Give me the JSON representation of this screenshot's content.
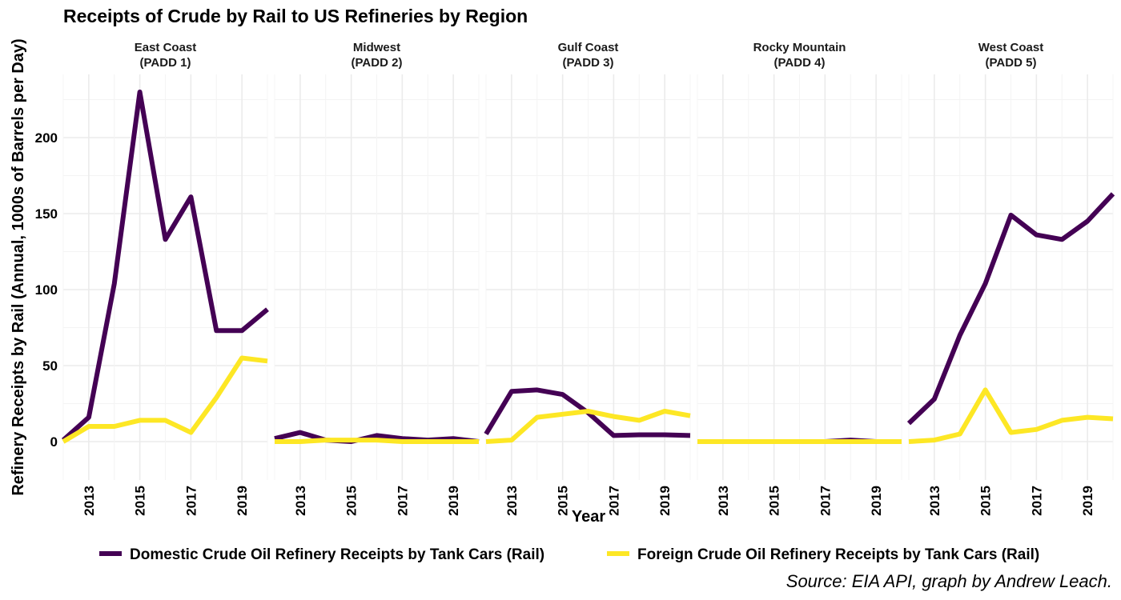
{
  "chart_data": {
    "type": "line",
    "title": "Receipts of Crude by Rail to US Refineries by Region",
    "xlabel": "Year",
    "ylabel": "Refinery Receipts by Rail (Annual, 1000s of Barrels per Day)",
    "caption": "Source: EIA API, graph by Andrew Leach.",
    "xlim": [
      2012,
      2020
    ],
    "ylim": [
      0,
      230
    ],
    "x_ticks": [
      2013,
      2015,
      2017,
      2019
    ],
    "y_ticks": [
      0,
      50,
      100,
      150,
      200
    ],
    "x": [
      2012,
      2013,
      2014,
      2015,
      2016,
      2017,
      2018,
      2019,
      2020
    ],
    "legend_position": "bottom",
    "colors": {
      "domestic": "#440154",
      "foreign": "#fde725"
    },
    "series_names": [
      "Domestic Crude Oil Refinery Receipts by Tank Cars (Rail)",
      "Foreign Crude Oil Refinery Receipts by Tank Cars (Rail)"
    ],
    "panels": [
      {
        "region": "East Coast",
        "padd": "(PADD 1)",
        "domestic": [
          1,
          16,
          104,
          230,
          133,
          161,
          73,
          73,
          87
        ],
        "foreign": [
          0,
          10,
          10,
          14,
          14,
          6,
          29,
          55,
          53
        ]
      },
      {
        "region": "Midwest",
        "padd": "(PADD 2)",
        "domestic": [
          2,
          6,
          1,
          0,
          4,
          2,
          1,
          2,
          0
        ],
        "foreign": [
          0,
          0,
          1,
          1,
          1,
          0,
          0,
          0,
          0
        ]
      },
      {
        "region": "Gulf Coast",
        "padd": "(PADD 3)",
        "domestic": [
          5,
          33,
          34,
          31,
          19,
          4,
          4.5,
          4.5,
          4
        ],
        "foreign": [
          0,
          1,
          16,
          18,
          20,
          16.5,
          14,
          20,
          17
        ]
      },
      {
        "region": "Rocky Mountain",
        "padd": "(PADD 4)",
        "domestic": [
          0,
          0,
          0,
          0,
          0,
          0,
          1,
          0,
          0
        ],
        "foreign": [
          0,
          0,
          0,
          0,
          0,
          0,
          0,
          0,
          0
        ]
      },
      {
        "region": "West Coast",
        "padd": "(PADD 5)",
        "domestic": [
          12,
          28,
          70,
          104,
          149,
          136,
          133,
          145,
          163
        ],
        "foreign": [
          0,
          1,
          5,
          34,
          6,
          8,
          14,
          16,
          15
        ]
      }
    ]
  }
}
